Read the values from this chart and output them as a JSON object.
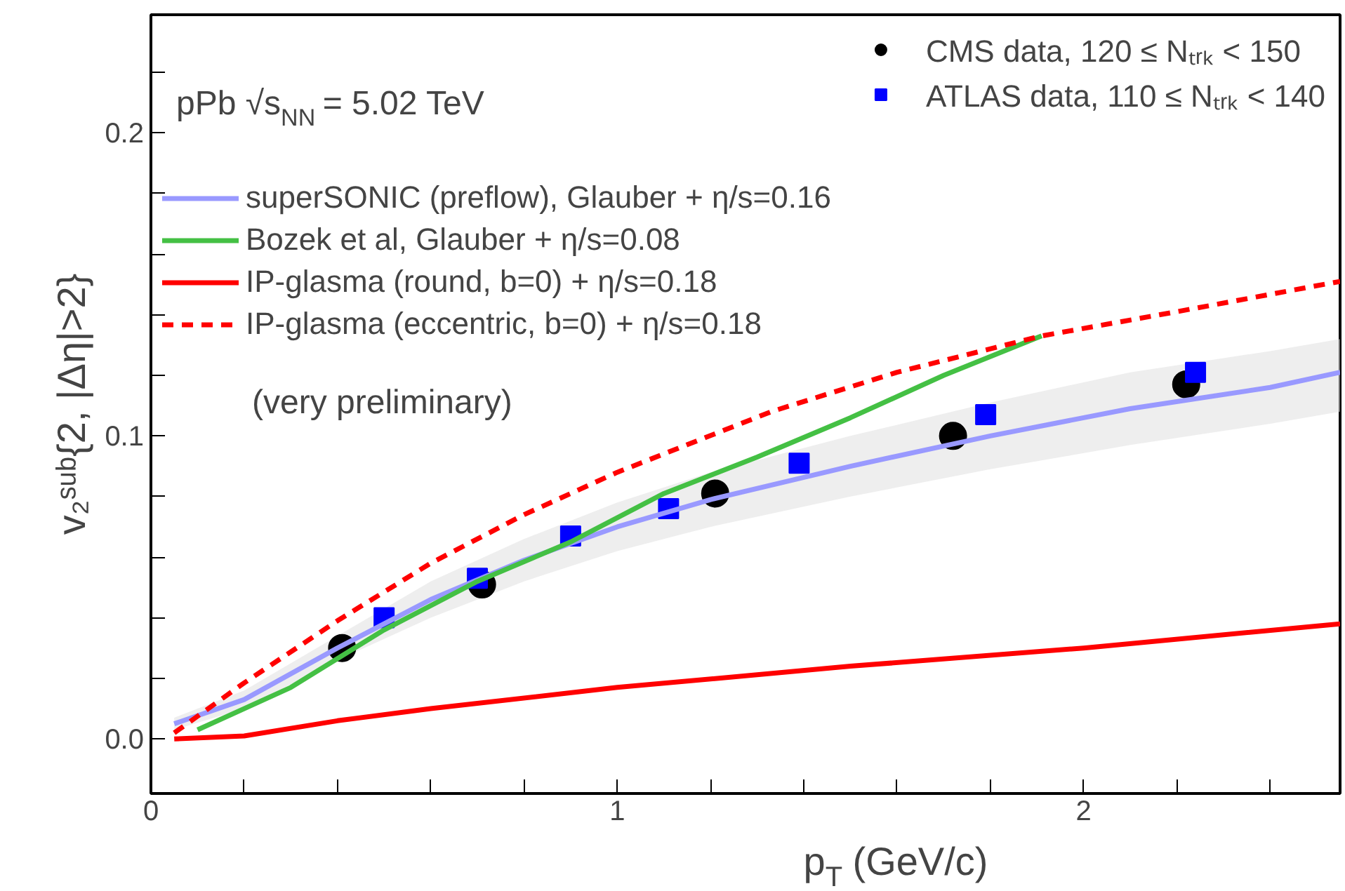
{
  "chart_data": {
    "type": "line",
    "xlabel": "p$_{T}$ (GeV/c)",
    "ylabel": "v₂ˢᵘᵇ{2, |Δη|>2}",
    "xlim": [
      0,
      2.55
    ],
    "ylim": [
      -0.018,
      0.239
    ],
    "xticks": [
      0,
      {
        "value": 0.2,
        "label": null
      },
      {
        "value": 0.4,
        "label": null
      },
      {
        "value": 0.6,
        "label": null
      },
      {
        "value": 0.8,
        "label": null
      },
      1,
      {
        "value": 1.2,
        "label": null
      },
      {
        "value": 1.4,
        "label": null
      },
      {
        "value": 1.6,
        "label": null
      },
      {
        "value": 1.8,
        "label": null
      },
      2,
      {
        "value": 2.2,
        "label": null
      },
      {
        "value": 2.4,
        "label": null
      }
    ],
    "yticks": [
      {
        "value": 0,
        "label": "0.0"
      },
      {
        "value": 0.02,
        "label": null
      },
      {
        "value": 0.04,
        "label": null
      },
      {
        "value": 0.06,
        "label": null
      },
      {
        "value": 0.08,
        "label": null
      },
      0.1,
      {
        "value": 0.12,
        "label": null
      },
      {
        "value": 0.14,
        "label": null
      },
      {
        "value": 0.16,
        "label": null
      },
      {
        "value": 0.18,
        "label": null
      },
      0.2,
      {
        "value": 0.22,
        "label": null
      }
    ],
    "grid": false,
    "legend": "top",
    "annotations": [
      "pPb √s$_{NN}$ = 5.02 TeV",
      "(very preliminary)"
    ],
    "series": [
      {
        "name": "CMS data, 120 ≤ Nₜᵣₖ < 150",
        "type": "scatter",
        "marker": "circle",
        "color": "#000000",
        "x": [
          0.41,
          0.71,
          1.21,
          1.72,
          2.22
        ],
        "values": [
          0.03,
          0.051,
          0.081,
          0.1,
          0.117
        ]
      },
      {
        "name": "ATLAS data, 110 ≤ Nₜᵣₖ < 140",
        "type": "scatter",
        "marker": "square",
        "color": "#0000ff",
        "x": [
          0.5,
          0.7,
          0.9,
          1.11,
          1.39,
          1.79,
          2.24
        ],
        "values": [
          0.04,
          0.053,
          0.067,
          0.076,
          0.091,
          0.107,
          0.121
        ]
      },
      {
        "name": "superSONIC (preflow), Glauber + η/s=0.16",
        "color": "#9999ff",
        "line_style": "solid",
        "x": [
          0.05,
          0.2,
          0.4,
          0.6,
          0.8,
          1.0,
          1.2,
          1.5,
          1.8,
          2.1,
          2.4,
          2.55
        ],
        "values": [
          0.005,
          0.013,
          0.03,
          0.046,
          0.059,
          0.07,
          0.079,
          0.09,
          0.1,
          0.109,
          0.116,
          0.121
        ],
        "lower": [
          0.003,
          0.01,
          0.026,
          0.04,
          0.052,
          0.062,
          0.07,
          0.08,
          0.089,
          0.097,
          0.104,
          0.108
        ],
        "upper": [
          0.007,
          0.016,
          0.034,
          0.052,
          0.066,
          0.078,
          0.088,
          0.1,
          0.111,
          0.121,
          0.128,
          0.132
        ]
      },
      {
        "name": "Bozek et al, Glauber + η/s=0.08",
        "color": "#44c044",
        "line_style": "solid",
        "x": [
          0.1,
          0.3,
          0.5,
          0.7,
          0.9,
          1.1,
          1.3,
          1.5,
          1.7,
          1.91
        ],
        "values": [
          0.003,
          0.017,
          0.036,
          0.052,
          0.065,
          0.081,
          0.093,
          0.106,
          0.12,
          0.133
        ]
      },
      {
        "name": "IP-glasma (round, b=0) + η/s=0.18",
        "color": "#ff0000",
        "line_style": "solid",
        "x": [
          0.05,
          0.2,
          0.4,
          0.6,
          1.0,
          1.5,
          2.0,
          2.55
        ],
        "values": [
          0.0,
          0.001,
          0.006,
          0.01,
          0.017,
          0.024,
          0.03,
          0.038
        ]
      },
      {
        "name": "IP-glasma (eccentric, b=0) + η/s=0.18",
        "color": "#ff0000",
        "line_style": "dashed",
        "x": [
          0.05,
          0.2,
          0.4,
          0.6,
          0.8,
          1.0,
          1.33,
          1.6,
          1.91,
          2.2,
          2.55
        ],
        "values": [
          0.002,
          0.0185,
          0.039,
          0.058,
          0.074,
          0.088,
          0.108,
          0.121,
          0.133,
          0.141,
          0.151
        ]
      }
    ]
  }
}
